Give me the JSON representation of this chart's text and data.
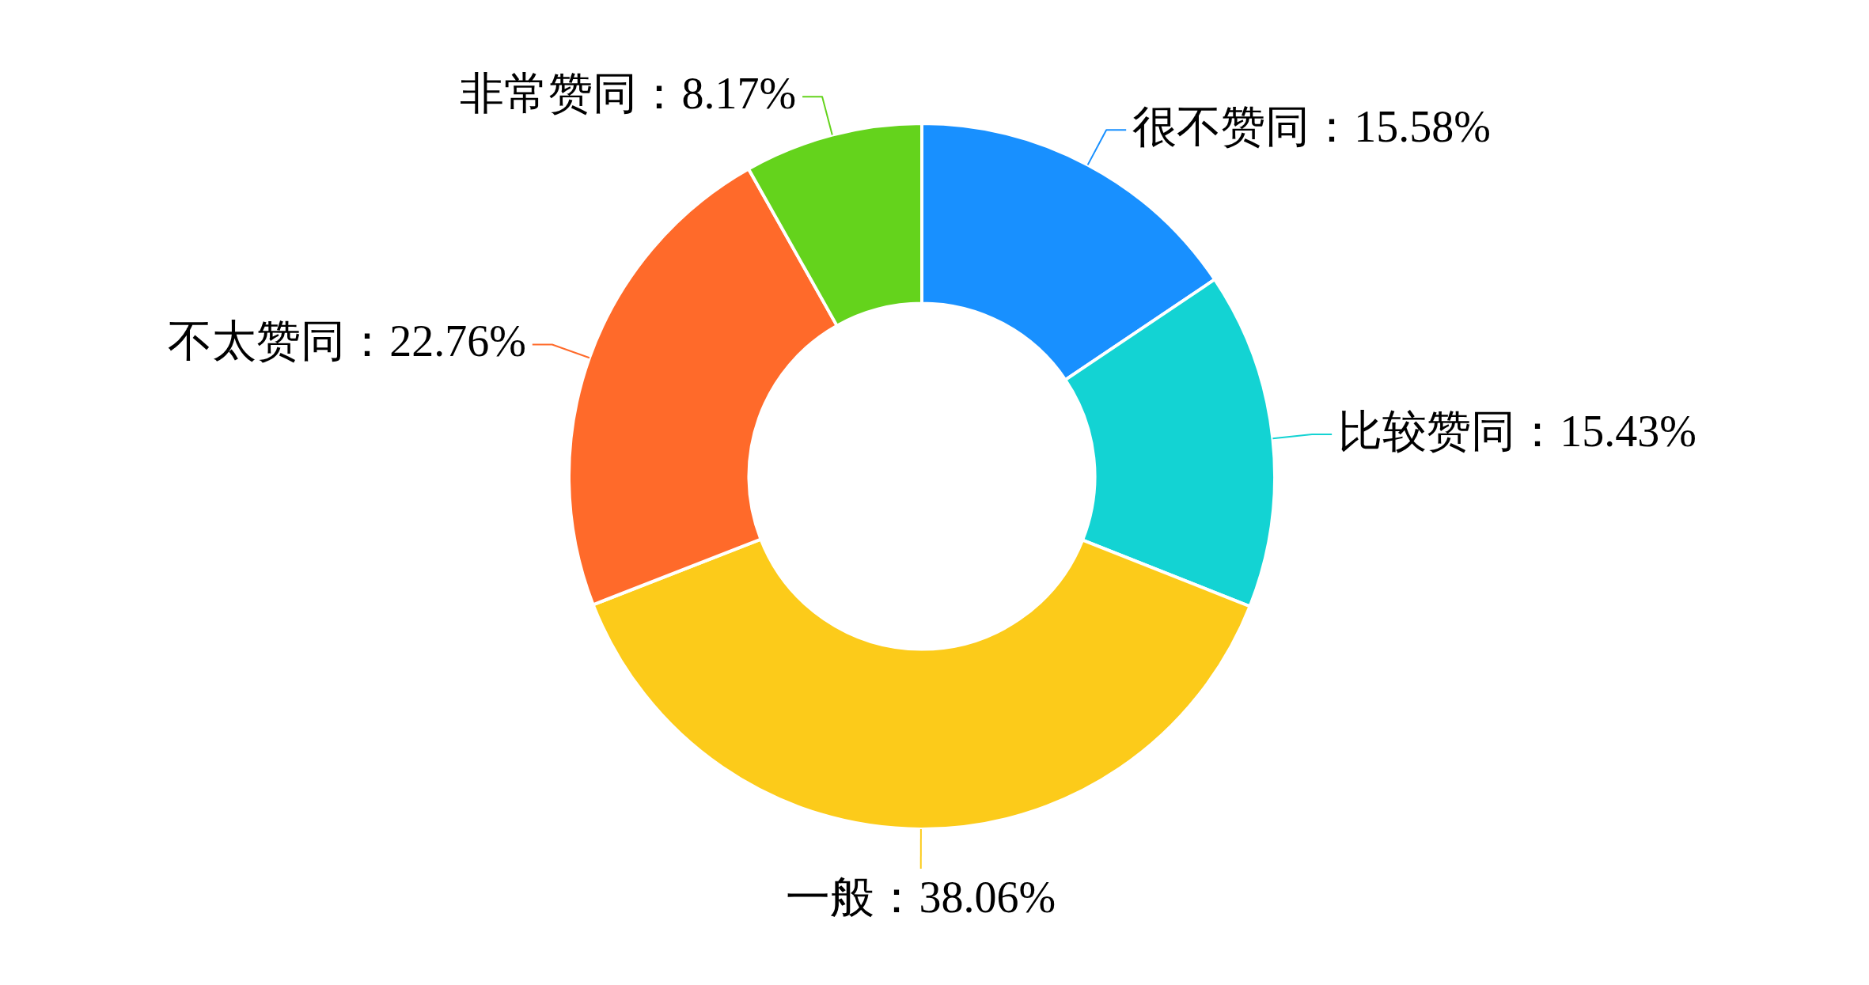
{
  "chart_data": {
    "type": "donut",
    "categories": [
      "很不赞同",
      "比较赞同",
      "一般",
      "不太赞同",
      "非常赞同"
    ],
    "values": [
      15.58,
      15.43,
      38.06,
      22.76,
      8.17
    ],
    "value_labels": [
      "15.58%",
      "15.43%",
      "38.06%",
      "22.76%",
      "8.17%"
    ],
    "colors": [
      "#1890ff",
      "#13d3d3",
      "#fccb1a",
      "#ff6a2a",
      "#64d31c"
    ],
    "legend": false
  }
}
